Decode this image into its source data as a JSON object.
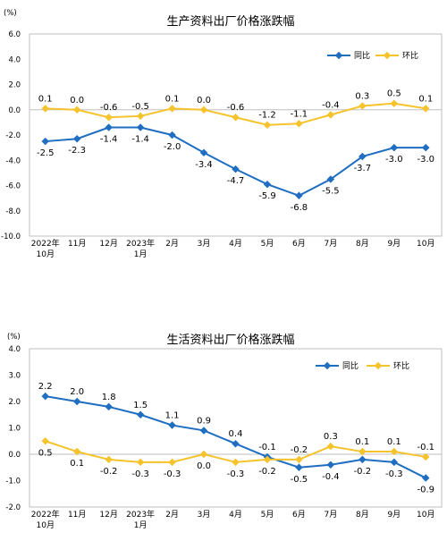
{
  "chart_data": [
    {
      "type": "line",
      "title": "生产资料出厂价格涨跌幅",
      "unit": "(%)",
      "ylim": [
        -10.0,
        6.0
      ],
      "yticks": [
        "6.0",
        "4.0",
        "2.0",
        "0.0",
        "-2.0",
        "-4.0",
        "-6.0",
        "-8.0",
        "-10.0"
      ],
      "categories": [
        [
          "2022年",
          "10月"
        ],
        [
          "11月"
        ],
        [
          "12月"
        ],
        [
          "2023年",
          "1月"
        ],
        [
          "2月"
        ],
        [
          "3月"
        ],
        [
          "4月"
        ],
        [
          "5月"
        ],
        [
          "6月"
        ],
        [
          "7月"
        ],
        [
          "8月"
        ],
        [
          "9月"
        ],
        [
          "10月"
        ]
      ],
      "grid": false,
      "legend": "top-right",
      "series": [
        {
          "name": "同比",
          "color": "#1f6ec1",
          "values": [
            -2.5,
            -2.3,
            -1.4,
            -1.4,
            -2.0,
            -3.4,
            -4.7,
            -5.9,
            -6.8,
            -5.5,
            -3.7,
            -3.0,
            -3.0
          ],
          "labels": [
            "-2.5",
            "-2.3",
            "-1.4",
            "-1.4",
            "-2.0",
            "-3.4",
            "-4.7",
            "-5.9",
            "-6.8",
            "-5.5",
            "-3.7",
            "-3.0",
            "-3.0"
          ]
        },
        {
          "name": "环比",
          "color": "#f5c32c",
          "values": [
            0.1,
            0.0,
            -0.6,
            -0.5,
            0.1,
            0.0,
            -0.6,
            -1.2,
            -1.1,
            -0.4,
            0.3,
            0.5,
            0.1
          ],
          "labels": [
            "0.1",
            "0.0",
            "-0.6",
            "-0.5",
            "0.1",
            "0.0",
            "-0.6",
            "-1.2",
            "-1.1",
            "-0.4",
            "0.3",
            "0.5",
            "0.1"
          ]
        }
      ]
    },
    {
      "type": "line",
      "title": "生活资料出厂价格涨跌幅",
      "unit": "(%)",
      "ylim": [
        -2.0,
        4.0
      ],
      "yticks": [
        "4.0",
        "3.0",
        "2.0",
        "1.0",
        "0.0",
        "-1.0",
        "-2.0"
      ],
      "categories": [
        [
          "2022年",
          "10月"
        ],
        [
          "11月"
        ],
        [
          "12月"
        ],
        [
          "2023年",
          "1月"
        ],
        [
          "2月"
        ],
        [
          "3月"
        ],
        [
          "4月"
        ],
        [
          "5月"
        ],
        [
          "6月"
        ],
        [
          "7月"
        ],
        [
          "8月"
        ],
        [
          "9月"
        ],
        [
          "10月"
        ]
      ],
      "grid": false,
      "legend": "top-right",
      "series": [
        {
          "name": "同比",
          "color": "#1f6ec1",
          "values": [
            2.2,
            2.0,
            1.8,
            1.5,
            1.1,
            0.9,
            0.4,
            -0.1,
            -0.5,
            -0.4,
            -0.2,
            -0.3,
            -0.9
          ],
          "labels": [
            "2.2",
            "2.0",
            "1.8",
            "1.5",
            "1.1",
            "0.9",
            "0.4",
            "-0.1",
            "-0.5",
            "-0.4",
            "-0.2",
            "-0.3",
            "-0.9"
          ]
        },
        {
          "name": "环比",
          "color": "#f5c32c",
          "values": [
            0.5,
            0.1,
            -0.2,
            -0.3,
            -0.3,
            0.0,
            -0.3,
            -0.2,
            -0.2,
            0.3,
            0.1,
            0.1,
            -0.1
          ],
          "labels": [
            "0.5",
            "0.1",
            "-0.2",
            "-0.3",
            "-0.3",
            "0.0",
            "-0.3",
            "-0.2",
            "-0.2",
            "0.3",
            "0.1",
            "0.1",
            "-0.1"
          ]
        }
      ]
    }
  ]
}
